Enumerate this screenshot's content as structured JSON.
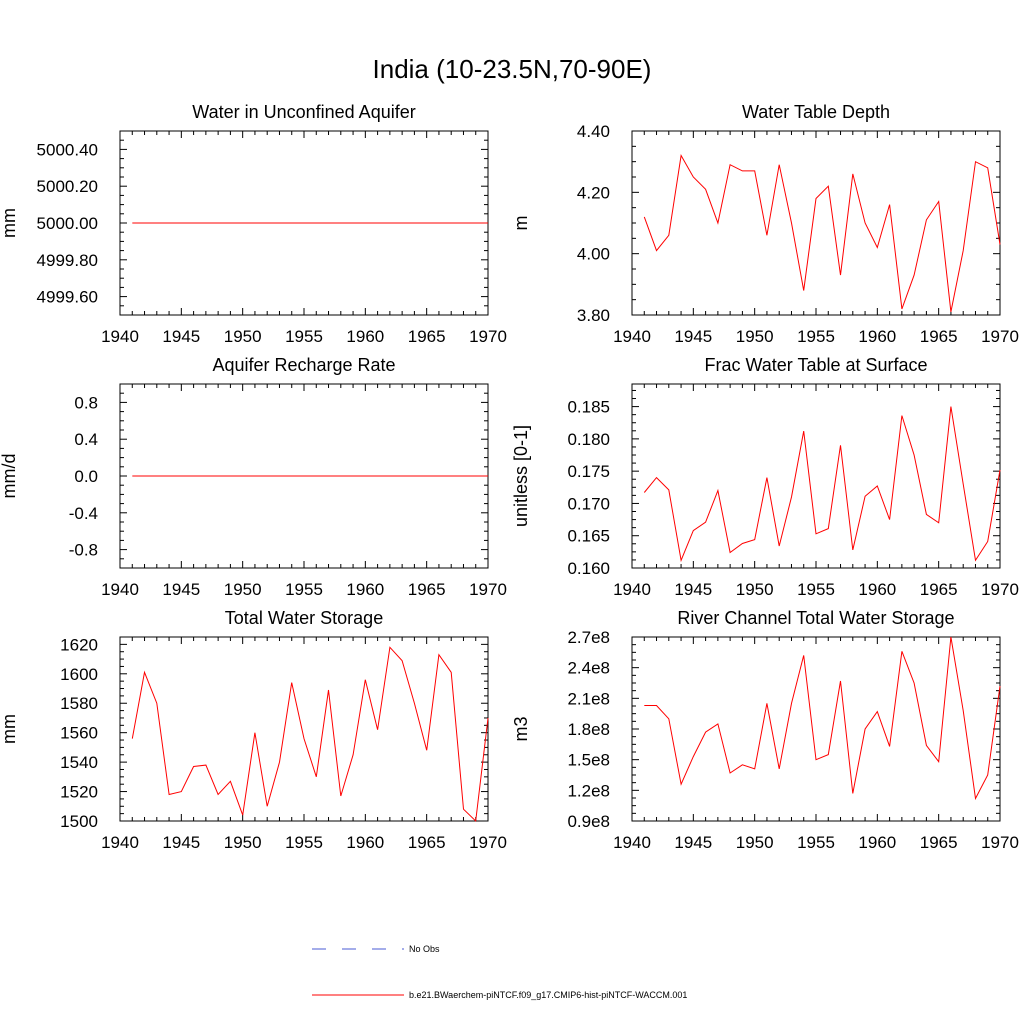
{
  "title": "India (10-23.5N,70-90E)",
  "chart_data": [
    {
      "type": "line",
      "title": "Water in Unconfined Aquifer",
      "ylabel": "mm",
      "xlim": [
        1940,
        1970
      ],
      "ylim": [
        4999.5,
        5000.5
      ],
      "xticks": [
        1940,
        1945,
        1950,
        1955,
        1960,
        1965,
        1970
      ],
      "yticks": [
        4999.6,
        4999.8,
        5000.0,
        5000.2,
        5000.4
      ],
      "ytick_labels": [
        "4999.60",
        "4999.80",
        "5000.00",
        "5000.20",
        "5000.40"
      ],
      "series": [
        {
          "color": "#ff0000",
          "x": [
            1941,
            1942,
            1943,
            1944,
            1945,
            1946,
            1947,
            1948,
            1949,
            1950,
            1951,
            1952,
            1953,
            1954,
            1955,
            1956,
            1957,
            1958,
            1959,
            1960,
            1961,
            1962,
            1963,
            1964,
            1965,
            1966,
            1967,
            1968,
            1969,
            1970
          ],
          "y": [
            5000,
            5000,
            5000,
            5000,
            5000,
            5000,
            5000,
            5000,
            5000,
            5000,
            5000,
            5000,
            5000,
            5000,
            5000,
            5000,
            5000,
            5000,
            5000,
            5000,
            5000,
            5000,
            5000,
            5000,
            5000,
            5000,
            5000,
            5000,
            5000,
            5000
          ]
        }
      ]
    },
    {
      "type": "line",
      "title": "Water Table Depth",
      "ylabel": "m",
      "xlim": [
        1940,
        1970
      ],
      "ylim": [
        3.8,
        4.4
      ],
      "xticks": [
        1940,
        1945,
        1950,
        1955,
        1960,
        1965,
        1970
      ],
      "yticks": [
        3.8,
        4.0,
        4.2,
        4.4
      ],
      "ytick_labels": [
        "3.80",
        "4.00",
        "4.20",
        "4.40"
      ],
      "series": [
        {
          "color": "#ff0000",
          "x": [
            1941,
            1942,
            1943,
            1944,
            1945,
            1946,
            1947,
            1948,
            1949,
            1950,
            1951,
            1952,
            1953,
            1954,
            1955,
            1956,
            1957,
            1958,
            1959,
            1960,
            1961,
            1962,
            1963,
            1964,
            1965,
            1966,
            1967,
            1968,
            1969,
            1970
          ],
          "y": [
            4.12,
            4.01,
            4.06,
            4.32,
            4.25,
            4.21,
            4.1,
            4.29,
            4.27,
            4.27,
            4.06,
            4.29,
            4.1,
            3.88,
            4.18,
            4.22,
            3.93,
            4.26,
            4.1,
            4.02,
            4.16,
            3.82,
            3.93,
            4.11,
            4.17,
            3.81,
            4.01,
            4.3,
            4.28,
            4.03
          ]
        }
      ]
    },
    {
      "type": "line",
      "title": "Aquifer Recharge Rate",
      "ylabel": "mm/d",
      "xlim": [
        1940,
        1970
      ],
      "ylim": [
        -1.0,
        1.0
      ],
      "xticks": [
        1940,
        1945,
        1950,
        1955,
        1960,
        1965,
        1970
      ],
      "yticks": [
        -0.8,
        -0.4,
        0.0,
        0.4,
        0.8
      ],
      "ytick_labels": [
        "-0.8",
        "-0.4",
        "0.0",
        "0.4",
        "0.8"
      ],
      "series": [
        {
          "color": "#ff0000",
          "x": [
            1941,
            1942,
            1943,
            1944,
            1945,
            1946,
            1947,
            1948,
            1949,
            1950,
            1951,
            1952,
            1953,
            1954,
            1955,
            1956,
            1957,
            1958,
            1959,
            1960,
            1961,
            1962,
            1963,
            1964,
            1965,
            1966,
            1967,
            1968,
            1969,
            1970
          ],
          "y": [
            0,
            0,
            0,
            0,
            0,
            0,
            0,
            0,
            0,
            0,
            0,
            0,
            0,
            0,
            0,
            0,
            0,
            0,
            0,
            0,
            0,
            0,
            0,
            0,
            0,
            0,
            0,
            0,
            0,
            0
          ]
        }
      ]
    },
    {
      "type": "line",
      "title": "Frac Water Table at Surface",
      "ylabel": "unitless [0-1]",
      "xlim": [
        1940,
        1970
      ],
      "ylim": [
        0.16,
        0.1885
      ],
      "xticks": [
        1940,
        1945,
        1950,
        1955,
        1960,
        1965,
        1970
      ],
      "yticks": [
        0.16,
        0.165,
        0.17,
        0.175,
        0.18,
        0.185
      ],
      "ytick_labels": [
        "0.160",
        "0.165",
        "0.170",
        "0.175",
        "0.180",
        "0.185"
      ],
      "series": [
        {
          "color": "#ff0000",
          "x": [
            1941,
            1942,
            1943,
            1944,
            1945,
            1946,
            1947,
            1948,
            1949,
            1950,
            1951,
            1952,
            1953,
            1954,
            1955,
            1956,
            1957,
            1958,
            1959,
            1960,
            1961,
            1962,
            1963,
            1964,
            1965,
            1966,
            1967,
            1968,
            1969,
            1970
          ],
          "y": [
            0.1717,
            0.174,
            0.1721,
            0.1612,
            0.1658,
            0.1671,
            0.172,
            0.1624,
            0.1638,
            0.1644,
            0.174,
            0.1634,
            0.171,
            0.1812,
            0.1653,
            0.1661,
            0.179,
            0.1628,
            0.1711,
            0.1727,
            0.1675,
            0.1836,
            0.1775,
            0.1683,
            0.167,
            0.185,
            0.173,
            0.1612,
            0.1641,
            0.1752
          ]
        }
      ]
    },
    {
      "type": "line",
      "title": "Total Water Storage",
      "ylabel": "mm",
      "xlim": [
        1940,
        1970
      ],
      "ylim": [
        1500,
        1625
      ],
      "xticks": [
        1940,
        1945,
        1950,
        1955,
        1960,
        1965,
        1970
      ],
      "yticks": [
        1500,
        1520,
        1540,
        1560,
        1580,
        1600,
        1620
      ],
      "ytick_labels": [
        "1500",
        "1520",
        "1540",
        "1560",
        "1580",
        "1600",
        "1620"
      ],
      "series": [
        {
          "color": "#ff0000",
          "x": [
            1941,
            1942,
            1943,
            1944,
            1945,
            1946,
            1947,
            1948,
            1949,
            1950,
            1951,
            1952,
            1953,
            1954,
            1955,
            1956,
            1957,
            1958,
            1959,
            1960,
            1961,
            1962,
            1963,
            1964,
            1965,
            1966,
            1967,
            1968,
            1969,
            1970
          ],
          "y": [
            1556,
            1601,
            1580,
            1518,
            1520,
            1537,
            1538,
            1518,
            1527,
            1504,
            1560,
            1510,
            1540,
            1594,
            1556,
            1530,
            1589,
            1517,
            1545,
            1596,
            1562,
            1618,
            1609,
            1580,
            1548,
            1613,
            1601,
            1508,
            1500,
            1570
          ]
        }
      ]
    },
    {
      "type": "line",
      "title": "River Channel Total Water Storage",
      "ylabel": "m3",
      "xlim": [
        1940,
        1970
      ],
      "ylim": [
        90000000,
        270000000
      ],
      "xticks": [
        1940,
        1945,
        1950,
        1955,
        1960,
        1965,
        1970
      ],
      "yticks": [
        90000000,
        120000000,
        150000000,
        180000000,
        210000000,
        240000000,
        270000000
      ],
      "ytick_labels": [
        "0.9e8",
        "1.2e8",
        "1.5e8",
        "1.8e8",
        "2.1e8",
        "2.4e8",
        "2.7e8"
      ],
      "series": [
        {
          "color": "#ff0000",
          "x": [
            1941,
            1942,
            1943,
            1944,
            1945,
            1946,
            1947,
            1948,
            1949,
            1950,
            1951,
            1952,
            1953,
            1954,
            1955,
            1956,
            1957,
            1958,
            1959,
            1960,
            1961,
            1962,
            1963,
            1964,
            1965,
            1966,
            1967,
            1968,
            1969,
            1970
          ],
          "y": [
            203000000,
            203000000,
            190000000,
            126000000,
            153000000,
            177000000,
            185000000,
            137000000,
            145000000,
            141000000,
            205000000,
            141000000,
            205000000,
            252000000,
            150000000,
            155000000,
            227000000,
            117000000,
            180000000,
            197000000,
            163000000,
            256000000,
            225000000,
            164000000,
            148000000,
            270000000,
            198000000,
            112000000,
            135000000,
            222000000
          ]
        }
      ]
    }
  ],
  "legend": {
    "items": [
      {
        "label": "No Obs",
        "color": "#4a5bd6",
        "style": "dashed"
      },
      {
        "label": "b.e21.BWaerchem-piNTCF.f09_g17.CMIP6-hist-piNTCF-WACCM.001",
        "color": "#ff0000",
        "style": "solid"
      }
    ]
  }
}
